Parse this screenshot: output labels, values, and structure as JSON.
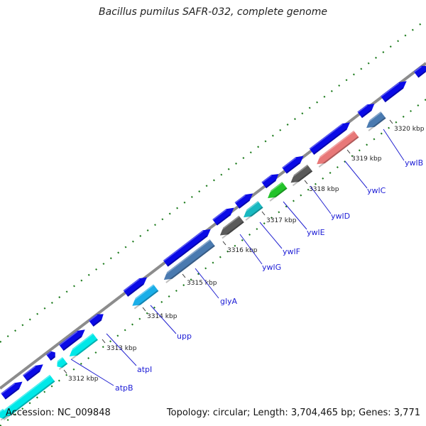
{
  "title": "Bacillus pumilus SAFR-032, complete genome",
  "accession_text": "Accession: NC_009848",
  "summary_text": "Topology: circular; Length: 3,704,465 bp; Genes: 3,771",
  "kbp_ticks": [
    {
      "label": "3312 kbp"
    },
    {
      "label": "3313 kbp"
    },
    {
      "label": "3314 kbp"
    },
    {
      "label": "3315 kbp"
    },
    {
      "label": "3316 kbp"
    },
    {
      "label": "3317 kbp"
    },
    {
      "label": "3318 kbp"
    },
    {
      "label": "3319 kbp"
    },
    {
      "label": "3320 kbp"
    }
  ],
  "gene_labels": [
    {
      "name": "atpB"
    },
    {
      "name": "atpI"
    },
    {
      "name": "upp"
    },
    {
      "name": "glyA"
    },
    {
      "name": "ywlG"
    },
    {
      "name": "ywlF"
    },
    {
      "name": "ywlE"
    },
    {
      "name": "ywlD"
    },
    {
      "name": "ywlC"
    },
    {
      "name": "ywlB"
    }
  ],
  "colors": {
    "backbone": "#8c8c8c",
    "gene_outer": "#0a0ae6",
    "cyan": "#00e8e8",
    "light_blue": "#1aaee8",
    "steel_blue": "#4a7ab0",
    "teal": "#18b8c0",
    "gray": "#5a5a5a",
    "green": "#22c32a",
    "salmon": "#e87878",
    "dots": "#1a7a1a",
    "label_line": "#2020d0"
  }
}
